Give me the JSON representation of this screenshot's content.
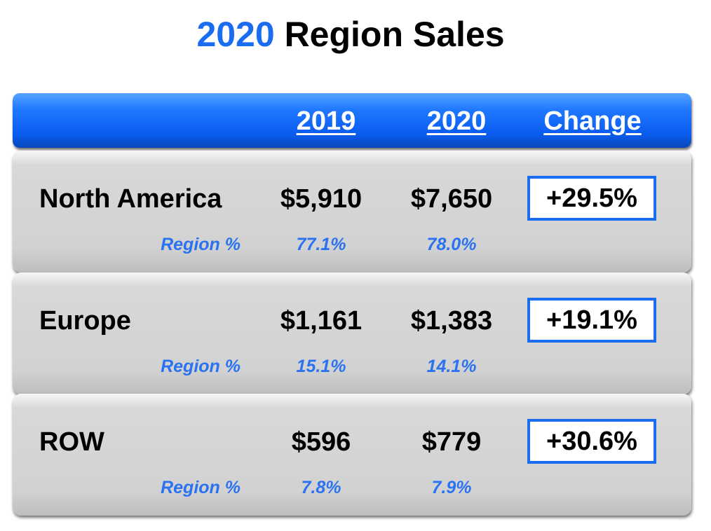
{
  "title": {
    "year": "2020",
    "rest": " Region Sales"
  },
  "header": {
    "col_2019": "2019",
    "col_2020": "2020",
    "col_change": "Change"
  },
  "chart_data": {
    "type": "table",
    "title": "2020 Region Sales",
    "columns": [
      "2019",
      "2020",
      "Change"
    ],
    "sub_label": "Region %",
    "rows": [
      {
        "region": "North America",
        "v2019": "$5,910",
        "v2020": "$7,650",
        "change": "+29.5%",
        "pct2019": "77.1%",
        "pct2020": "78.0%"
      },
      {
        "region": "Europe",
        "v2019": "$1,161",
        "v2020": "$1,383",
        "change": "+19.1%",
        "pct2019": "15.1%",
        "pct2020": "14.1%"
      },
      {
        "region": "ROW",
        "v2019": "$596",
        "v2020": "$779",
        "change": "+30.6%",
        "pct2019": "7.8%",
        "pct2020": "7.9%"
      }
    ]
  },
  "colors": {
    "accent": "#1a6cf0",
    "row_fill": "#d4d4d4",
    "sub_text": "#2a72f0"
  }
}
